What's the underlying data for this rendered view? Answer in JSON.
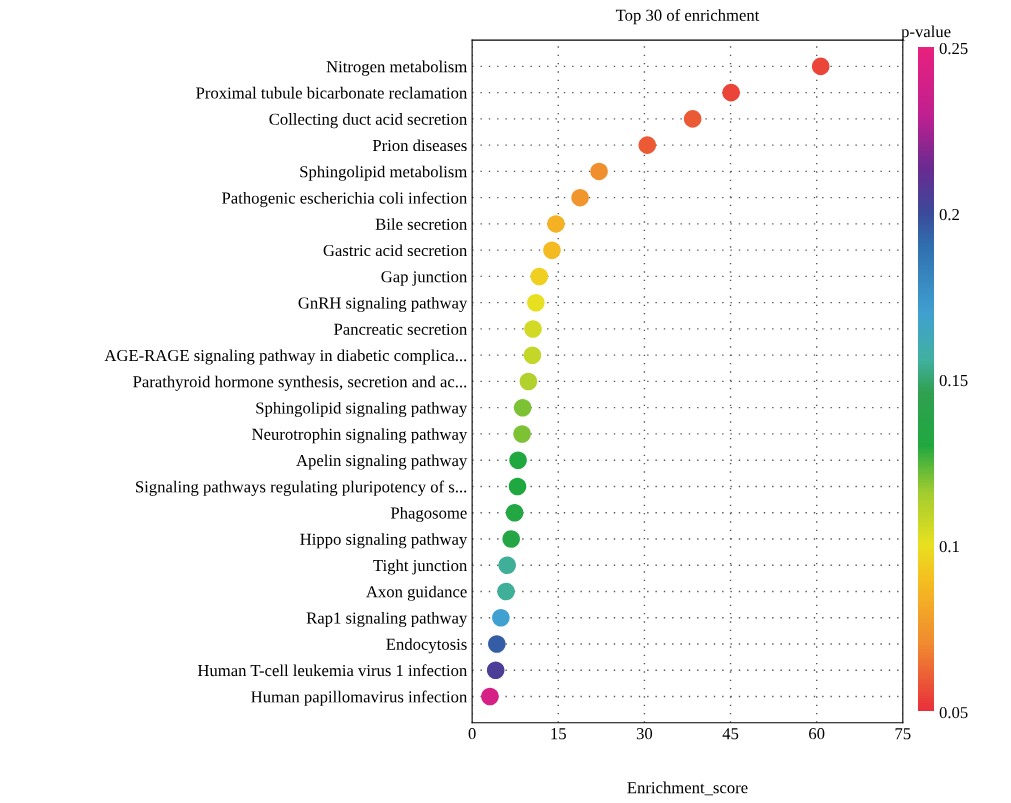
{
  "chart_data": {
    "type": "scatter",
    "title": "Top 30 of enrichment",
    "xlabel": "Enrichment_score",
    "clabel": "p-value",
    "categories": [
      "Nitrogen metabolism",
      "Proximal tubule bicarbonate reclamation",
      "Collecting duct acid secretion",
      "Prion diseases",
      "Sphingolipid metabolism",
      "Pathogenic escherichia coli infection",
      "Bile secretion",
      "Gastric acid secretion",
      "Gap junction",
      "GnRH signaling pathway",
      "Pancreatic secretion",
      "AGE-RAGE signaling pathway in diabetic complica...",
      "Parathyroid hormone synthesis, secretion and ac...",
      "Sphingolipid signaling pathway",
      "Neurotrophin signaling pathway",
      "Apelin signaling pathway",
      "Signaling pathways regulating pluripotency of s...",
      "Phagosome",
      "Hippo signaling pathway",
      "Tight junction",
      "Axon guidance",
      "Rap1 signaling pathway",
      "Endocytosis",
      "Human T-cell leukemia virus 1 infection",
      "Human papillomavirus infection"
    ],
    "orientation": "horizontal",
    "values": [
      60.7,
      45.1,
      38.4,
      30.5,
      22.1,
      18.8,
      14.6,
      13.9,
      11.7,
      11.1,
      10.6,
      10.5,
      9.8,
      8.8,
      8.7,
      8.0,
      7.9,
      7.4,
      6.8,
      6.1,
      5.9,
      5.0,
      4.3,
      4.1,
      3.1
    ],
    "cvalues": [
      0.055,
      0.055,
      0.06,
      0.06,
      0.072,
      0.075,
      0.085,
      0.088,
      0.095,
      0.1,
      0.105,
      0.108,
      0.112,
      0.12,
      0.12,
      0.13,
      0.13,
      0.132,
      0.135,
      0.155,
      0.155,
      0.17,
      0.195,
      0.205,
      0.24
    ],
    "xlim": [
      0,
      75
    ],
    "xticks": [
      0,
      15,
      30,
      45,
      60,
      75
    ],
    "clim": [
      0.05,
      0.25
    ],
    "cticks": [
      0.05,
      0.1,
      0.15,
      0.2,
      0.25
    ],
    "grid": true,
    "marker": "circle",
    "legend": false
  }
}
